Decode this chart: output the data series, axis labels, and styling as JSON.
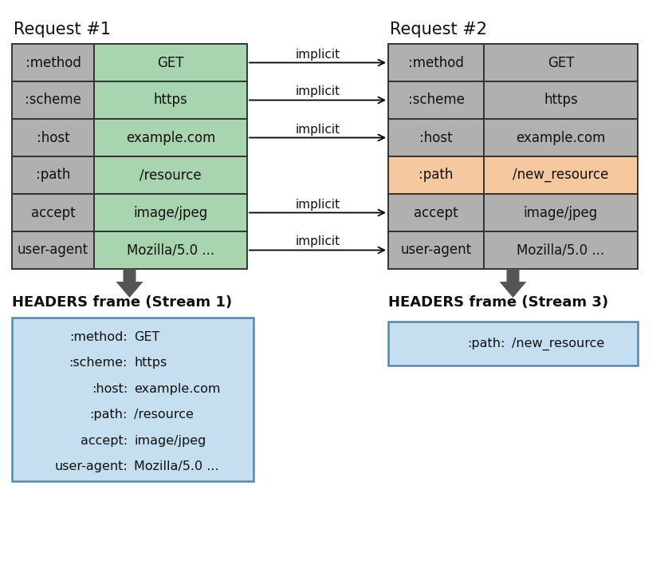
{
  "req1_title": "Request #1",
  "req2_title": "Request #2",
  "headers": [
    ":method",
    ":scheme",
    ":host",
    ":path",
    "accept",
    "user-agent"
  ],
  "req1_values": [
    "GET",
    "https",
    "example.com",
    "/resource",
    "image/jpeg",
    "Mozilla/5.0 ..."
  ],
  "req2_values": [
    "GET",
    "https",
    "example.com",
    "/new_resource",
    "image/jpeg",
    "Mozilla/5.0 ..."
  ],
  "req1_key_color": "#b0b0b0",
  "req1_val_color": "#a8d4b0",
  "req2_key_colors": [
    "#b0b0b0",
    "#b0b0b0",
    "#b0b0b0",
    "#f5c8a0",
    "#b0b0b0",
    "#b0b0b0"
  ],
  "req2_val_colors": [
    "#b0b0b0",
    "#b0b0b0",
    "#b0b0b0",
    "#f5c8a0",
    "#b0b0b0",
    "#b0b0b0"
  ],
  "frame1_title": "HEADERS frame (Stream 1)",
  "frame2_title": "HEADERS frame (Stream 3)",
  "frame1_keys": [
    ":method:",
    ":scheme:",
    ":host:",
    ":path:",
    "accept:",
    "user-agent:"
  ],
  "frame1_vals": [
    "GET",
    "https",
    "example.com",
    "/resource",
    "image/jpeg",
    "Mozilla/5.0 ..."
  ],
  "frame2_key": ":path:",
  "frame2_val": "/new_resource",
  "frame_bg": "#c5dff0",
  "frame_border": "#5588aa",
  "implicit_rows": [
    0,
    1,
    2,
    4,
    5
  ],
  "arrow_color": "#555555",
  "bg_color": "#ffffff",
  "cell_edge_color": "#333333",
  "text_color": "#111111"
}
